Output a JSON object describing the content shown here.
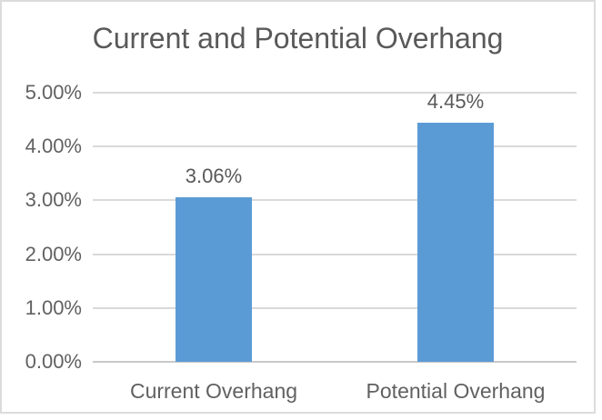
{
  "chart_data": {
    "type": "bar",
    "title": "Current and Potential Overhang",
    "categories": [
      "Current Overhang",
      "Potential Overhang"
    ],
    "values": [
      3.06,
      4.45
    ],
    "value_labels": [
      "3.06%",
      "4.45%"
    ],
    "xlabel": "",
    "ylabel": "",
    "ylim": [
      0,
      5
    ],
    "ytick_interval": 1,
    "ytick_labels": [
      "0.00%",
      "1.00%",
      "2.00%",
      "3.00%",
      "4.00%",
      "5.00%"
    ],
    "grid": true,
    "legend": false,
    "bar_color": "#5b9bd5",
    "title_color": "#595959",
    "label_color": "#595959",
    "axis_text_color": "#616161",
    "gridline_color": "#d9d9d9",
    "axis_line_color": "#c9c9c9",
    "frame_border_color": "#dcdcdc"
  }
}
